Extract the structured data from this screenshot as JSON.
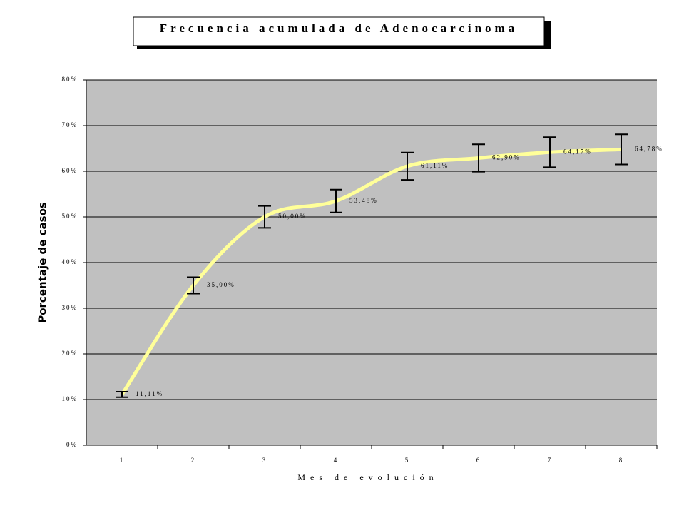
{
  "chart_data": {
    "type": "line",
    "title": "Frecuencia acumulada de Adenocarcinoma",
    "x_label": "Mes de evolución",
    "y_label": "Porcentaje de casos",
    "categories": [
      "1",
      "2",
      "3",
      "4",
      "5",
      "6",
      "7",
      "8"
    ],
    "series": [
      {
        "color": "#ffff99",
        "values": [
          11.11,
          35.0,
          50.0,
          53.48,
          61.11,
          62.9,
          64.17,
          64.78
        ],
        "value_labels": [
          "11,11%",
          "35,00%",
          "50,00%",
          "53,48%",
          "61,11%",
          "62,90%",
          "64,17%",
          "64,78%"
        ],
        "error": [
          0.6,
          1.8,
          2.4,
          2.5,
          3.0,
          3.0,
          3.3,
          3.3
        ]
      }
    ],
    "ylim": [
      0,
      80
    ],
    "yticks": [
      {
        "value": 0,
        "label": "0%"
      },
      {
        "value": 10,
        "label": "10%"
      },
      {
        "value": 20,
        "label": "20%"
      },
      {
        "value": 30,
        "label": "30%"
      },
      {
        "value": 40,
        "label": "40%"
      },
      {
        "value": 50,
        "label": "50%"
      },
      {
        "value": 60,
        "label": "60%"
      },
      {
        "value": 70,
        "label": "70%"
      },
      {
        "value": 80,
        "label": "80%"
      }
    ],
    "grid": true
  }
}
